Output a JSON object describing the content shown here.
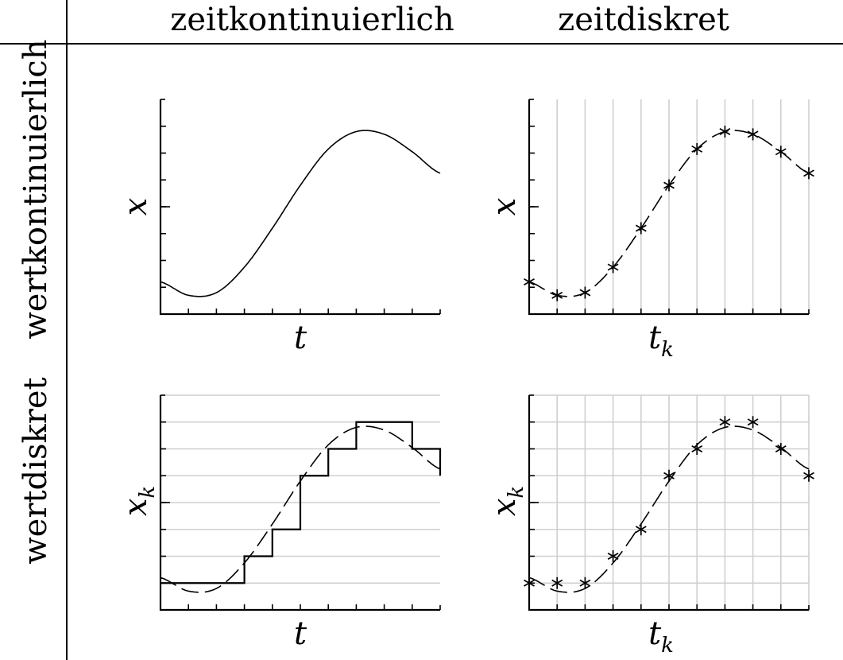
{
  "headers": {
    "col_continuous_time": "zeitkontinuierlich",
    "col_discrete_time": "zeitdiskret",
    "row_continuous_value": "wertkontinuierlich",
    "row_discrete_value": "wertdiskret"
  },
  "plots": [
    {
      "id": "top-left",
      "xlabel": "t",
      "xlabel_sub": "",
      "ylabel": "x",
      "ylabel_sub": "",
      "mode": "continuous"
    },
    {
      "id": "top-right",
      "xlabel": "t",
      "xlabel_sub": "k",
      "ylabel": "x",
      "ylabel_sub": "",
      "mode": "sampled"
    },
    {
      "id": "bottom-left",
      "xlabel": "t",
      "xlabel_sub": "",
      "ylabel": "x",
      "ylabel_sub": "k",
      "mode": "quantized"
    },
    {
      "id": "bottom-right",
      "xlabel": "t",
      "xlabel_sub": "k",
      "ylabel": "x",
      "ylabel_sub": "k",
      "mode": "sampled-quantized"
    }
  ],
  "signal": {
    "samples_x": [
      0,
      1,
      2,
      3,
      4,
      5,
      6,
      7,
      8,
      9,
      10
    ],
    "samples_y": [
      1.2,
      0.7,
      0.8,
      1.75,
      3.2,
      4.8,
      6.15,
      6.8,
      6.7,
      6.05,
      5.25
    ],
    "quantized_y": [
      1,
      1,
      1,
      2,
      3,
      5,
      6,
      7,
      7,
      6,
      5
    ],
    "y_range": [
      0,
      8
    ],
    "x_range": [
      0,
      10
    ]
  }
}
